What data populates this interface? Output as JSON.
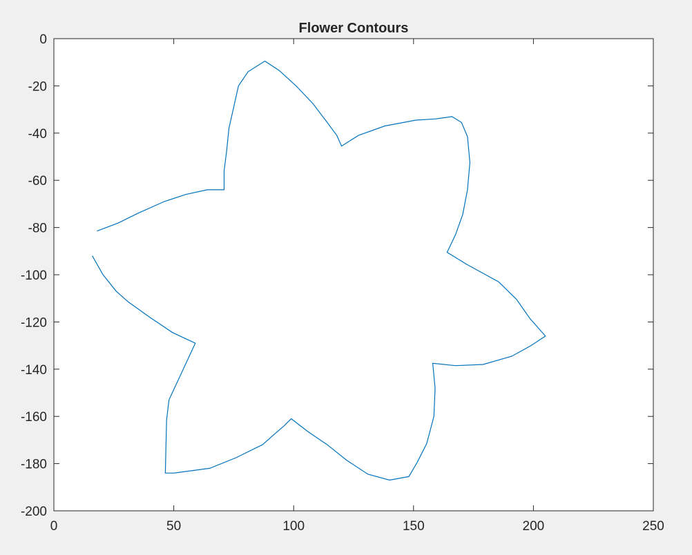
{
  "window": {
    "background": "#f0f0f0"
  },
  "chart_data": {
    "type": "line",
    "title": "Flower Contours",
    "xlabel": "",
    "ylabel": "",
    "xlim": [
      0,
      250
    ],
    "ylim": [
      -200,
      0
    ],
    "xticks": [
      0,
      50,
      100,
      150,
      200,
      250
    ],
    "yticks": [
      0,
      -20,
      -40,
      -60,
      -80,
      -100,
      -120,
      -140,
      -160,
      -180,
      -200
    ],
    "xtick_labels": [
      "0",
      "50",
      "100",
      "150",
      "200",
      "250"
    ],
    "ytick_labels": [
      "0",
      "-20",
      "-40",
      "-60",
      "-80",
      "-100",
      "-120",
      "-140",
      "-160",
      "-180",
      "-200"
    ],
    "grid": false,
    "line_color": "#0072bd",
    "axes_color": "#262626",
    "plot_background": "#ffffff",
    "series": [
      {
        "x": [
          18,
          27,
          35,
          46,
          55,
          64,
          71,
          71,
          72,
          73,
          75,
          77,
          81,
          88,
          94,
          101,
          108,
          114,
          118,
          120,
          127,
          138,
          151,
          159,
          166,
          170,
          172.5,
          173.5,
          172.5,
          170.5,
          167.5,
          164,
          172,
          185.5,
          193,
          198.5,
          205,
          199,
          191,
          179,
          167.5,
          158,
          159,
          158.5,
          155.5,
          151.5,
          148,
          140,
          131,
          122,
          114,
          106,
          99,
          96,
          92,
          87,
          76,
          65,
          50,
          46.5,
          47,
          48,
          59,
          49.5,
          40,
          31,
          26,
          20.5,
          16
        ],
        "y": [
          -81.5,
          -78,
          -74,
          -69,
          -66,
          -64,
          -64,
          -56,
          -48,
          -38,
          -29,
          -20,
          -14,
          -9.5,
          -13.5,
          -20,
          -27.5,
          -35.5,
          -41,
          -45.5,
          -41,
          -37,
          -34.5,
          -34,
          -33,
          -35.5,
          -41.5,
          -52.5,
          -64,
          -74.5,
          -83,
          -90.5,
          -95.5,
          -103,
          -110.5,
          -118.5,
          -126,
          -130,
          -134.5,
          -138,
          -138.5,
          -137.5,
          -148,
          -160,
          -171.5,
          -179.5,
          -185.5,
          -187,
          -184.5,
          -178.5,
          -172,
          -166.5,
          -161,
          -164,
          -167.5,
          -172,
          -177.5,
          -182,
          -184,
          -184,
          -161.5,
          -153,
          -129,
          -124.5,
          -118,
          -111.5,
          -107,
          -100,
          -92
        ]
      }
    ]
  }
}
